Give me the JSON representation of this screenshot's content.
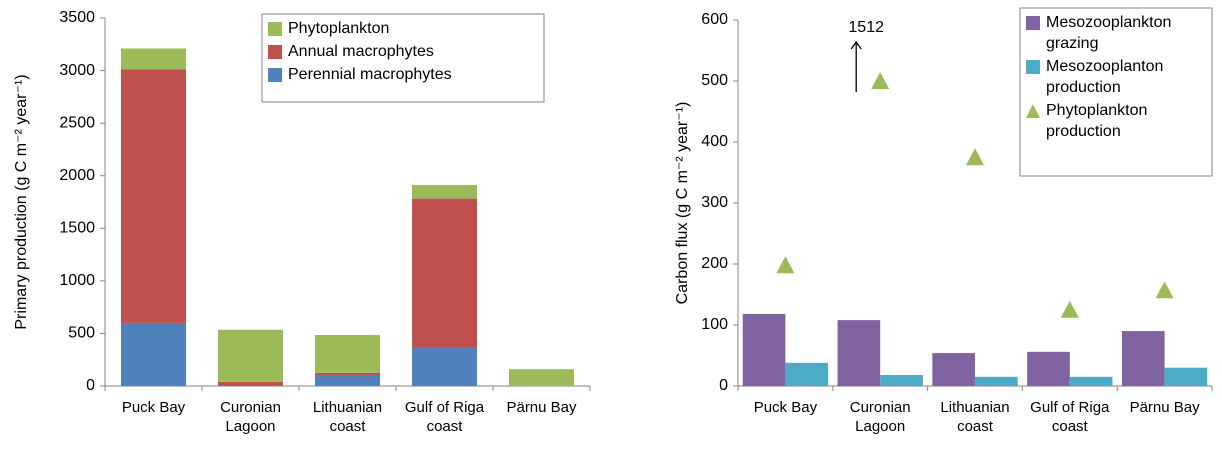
{
  "chart_data": [
    {
      "type": "bar",
      "stacked": true,
      "y_label": "Primary production (g C m⁻² year⁻¹)",
      "categories": [
        "Puck Bay",
        "Curonian Lagoon",
        "Lithuanian coast",
        "Gulf of Riga coast",
        "Pärnu Bay"
      ],
      "series": [
        {
          "name": "Perennial macrophytes",
          "color": "#4f81bd",
          "values": [
            600,
            5,
            105,
            362,
            0
          ]
        },
        {
          "name": "Annual macrophytes",
          "color": "#c0504d",
          "values": [
            2410,
            35,
            20,
            1420,
            0
          ]
        },
        {
          "name": "Phytoplankton",
          "color": "#9bbb59",
          "values": [
            200,
            495,
            360,
            130,
            160
          ]
        }
      ],
      "ylim": [
        0,
        3500
      ],
      "yticks": [
        0,
        500,
        1000,
        1500,
        2000,
        2500,
        3000,
        3500
      ],
      "legend": "top-center"
    },
    {
      "type": "bar",
      "stacked": false,
      "y_label": "Carbon flux (g C m⁻² year⁻¹)",
      "categories": [
        "Puck Bay",
        "Curonian Lagoon",
        "Lithuanian coast",
        "Gulf of Riga coast",
        "Pärnu Bay"
      ],
      "series": [
        {
          "name": "Mesozooplankton grazing",
          "color": "#8064a2",
          "type": "bar",
          "values": [
            118,
            108,
            54,
            56,
            90
          ]
        },
        {
          "name": "Mesozooplanton production",
          "color": "#4bacc6",
          "type": "bar",
          "values": [
            38,
            18,
            15,
            15,
            30
          ]
        },
        {
          "name": "Phytoplankton production",
          "color": "#9bbb59",
          "type": "scatter",
          "values": [
            198,
            500,
            375,
            125,
            157
          ]
        }
      ],
      "annotation": "1512",
      "ylim": [
        0,
        600
      ],
      "yticks": [
        0,
        100,
        200,
        300,
        400,
        500,
        600
      ],
      "legend": "top-right"
    }
  ]
}
